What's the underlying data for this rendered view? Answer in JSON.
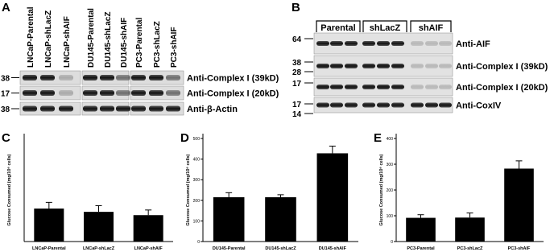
{
  "blot_a": {
    "panel": "A",
    "lanes": [
      "LNCaP-Parental",
      "LNCaP-shLacZ",
      "LNCaP-shAIF",
      "DU145-Parental",
      "DU145-shLacZ",
      "DU145-shAIF",
      "PC3-Parental",
      "PC3-shLacZ",
      "PC3-shAIF"
    ],
    "markers": [
      "38",
      "17",
      "38"
    ],
    "antibodies": [
      "Anti-Complex I (39kD)",
      "Anti-Complex I (20kD)",
      "Anti-β-Actin"
    ]
  },
  "blot_b": {
    "panel": "B",
    "groups": [
      "Parental",
      "shLacZ",
      "shAIF"
    ],
    "markers": [
      "64",
      "38",
      "28",
      "17",
      "17",
      "14"
    ],
    "antibodies": [
      "Anti-AIF",
      "Anti-Complex I (39kD)",
      "Anti-Complex I (20kD)",
      "Anti-CoxIV"
    ]
  },
  "chart_data": [
    {
      "type": "bar",
      "panel": "C",
      "y_label": "Glucose Consumed (mg/10⁶ cells)",
      "categories": [
        "LNCaP-Parental",
        "LNCaP-shLacZ",
        "LNCaP-shAIF"
      ],
      "values": [
        160,
        144,
        128
      ],
      "errors": [
        30,
        30,
        25
      ],
      "color": "#000000",
      "ylim": [
        0,
        500
      ]
    },
    {
      "type": "bar",
      "panel": "D",
      "y_label": "Glucose Consumed (mg/10⁶ cells)",
      "categories": [
        "DU145-Parental",
        "DU145-shLacZ",
        "DU145-shAIF"
      ],
      "values": [
        215,
        215,
        428
      ],
      "errors": [
        22,
        12,
        35
      ],
      "color": "#000000",
      "ylim": [
        0,
        500
      ],
      "yticks": [
        0,
        100,
        200,
        300,
        400,
        500
      ]
    },
    {
      "type": "bar",
      "panel": "E",
      "y_label": "Glucose Consumed (mg/10⁶ cells)",
      "categories": [
        "PC3-Parental",
        "PC3-shLacZ",
        "PC3-shAIF"
      ],
      "values": [
        92,
        93,
        283
      ],
      "errors": [
        12,
        18,
        30
      ],
      "color": "#000000",
      "ylim": [
        0,
        400
      ],
      "yticks": [
        0,
        100,
        200,
        300,
        400
      ]
    }
  ]
}
